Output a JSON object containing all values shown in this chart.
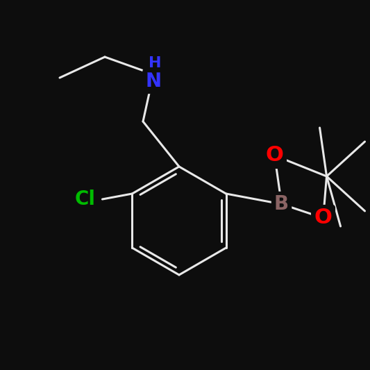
{
  "background_color": "#000000",
  "bond_color": "#000000",
  "line_color": "#ffffff",
  "atom_colors": {
    "N": "#3333ff",
    "O": "#ff0000",
    "B": "#8b6464",
    "Cl": "#00bb00",
    "H_label": "#3333ff"
  },
  "bond_width": 2.0,
  "font_size": 18,
  "image_bg": "#0d0d0d"
}
